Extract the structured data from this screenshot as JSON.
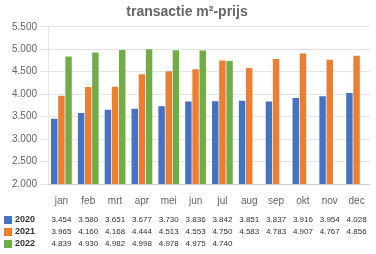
{
  "chart_data": {
    "type": "bar",
    "title": "transactie m²-prijs",
    "categories": [
      "jan",
      "feb",
      "mrt",
      "apr",
      "mei",
      "jun",
      "jul",
      "aug",
      "sep",
      "okt",
      "nov",
      "dec"
    ],
    "series": [
      {
        "name": "2020",
        "color": "#4472C4",
        "values": [
          3454,
          3580,
          3651,
          3677,
          3730,
          3836,
          3842,
          3851,
          3837,
          3916,
          3954,
          4028
        ],
        "value_labels": [
          "3.454",
          "3.580",
          "3.651",
          "3.677",
          "3.730",
          "3.836",
          "3.842",
          "3.851",
          "3.837",
          "3.916",
          "3.954",
          "4.028"
        ]
      },
      {
        "name": "2021",
        "color": "#ED7D31",
        "values": [
          3965,
          4160,
          4168,
          4444,
          4513,
          4553,
          4750,
          4583,
          4783,
          4907,
          4767,
          4856
        ],
        "value_labels": [
          "3.965",
          "4.160",
          "4.168",
          "4.444",
          "4.513",
          "4.553",
          "4.750",
          "4.583",
          "4.783",
          "4.907",
          "4.767",
          "4.856"
        ]
      },
      {
        "name": "2022",
        "color": "#70AD47",
        "values": [
          4839,
          4930,
          4982,
          4998,
          4978,
          4975,
          4740,
          null,
          null,
          null,
          null,
          null
        ],
        "value_labels": [
          "4.839",
          "4.930",
          "4.982",
          "4.998",
          "4.978",
          "4.975",
          "4.740",
          null,
          null,
          null,
          null,
          null
        ]
      }
    ],
    "ylim": [
      2000,
      5500
    ],
    "yticks": [
      {
        "value": 2000,
        "label": "2.000"
      },
      {
        "value": 2500,
        "label": "2.500"
      },
      {
        "value": 3000,
        "label": "3.000"
      },
      {
        "value": 3500,
        "label": "3.500"
      },
      {
        "value": 4000,
        "label": "4.000"
      },
      {
        "value": 4500,
        "label": "4.500"
      },
      {
        "value": 5000,
        "label": "5.000"
      },
      {
        "value": 5500,
        "label": "5.500"
      }
    ],
    "grid": true
  }
}
